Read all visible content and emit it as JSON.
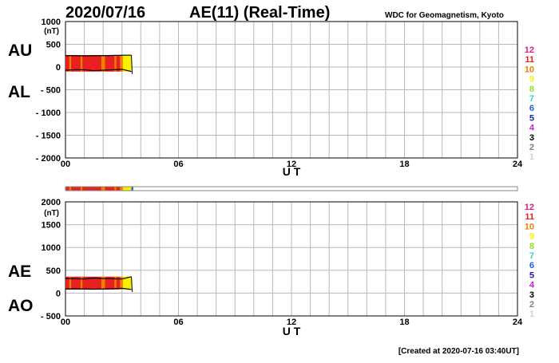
{
  "header": {
    "date": "2020/07/16",
    "title": "AE(11) (Real-Time)",
    "source": "WDC for Geomagnetism, Kyoto"
  },
  "footer": {
    "created": "[Created at 2020-07-16 03:40UT]"
  },
  "top_panel": {
    "upper_label": "AU",
    "lower_label": "AL",
    "ylabel_unit": "(nT)",
    "xlabel": "U T"
  },
  "bottom_panel": {
    "upper_label": "AE",
    "lower_label": "AO",
    "ylabel_unit": "(nT)",
    "xlabel": "U T"
  },
  "legend": {
    "levels": [
      {
        "label": "12",
        "color": "#e0207a"
      },
      {
        "label": "11",
        "color": "#e82020"
      },
      {
        "label": "10",
        "color": "#f08000"
      },
      {
        "label": "9",
        "color": "#f8f000"
      },
      {
        "label": "8",
        "color": "#90e020"
      },
      {
        "label": "7",
        "color": "#30d0d0"
      },
      {
        "label": "6",
        "color": "#2060e0"
      },
      {
        "label": "5",
        "color": "#2020a0"
      },
      {
        "label": "4",
        "color": "#c020e0"
      },
      {
        "label": "3",
        "color": "#000000"
      },
      {
        "label": "2",
        "color": "#808080"
      },
      {
        "label": "1",
        "color": "#d0d0d0"
      }
    ]
  },
  "chart_data": [
    {
      "type": "area",
      "title": "",
      "xlabel": "U T",
      "ylabel": "(nT)",
      "xlim": [
        0,
        24
      ],
      "ylim": [
        -2000,
        1000
      ],
      "x_ticks": [
        {
          "value": 0,
          "label": "00"
        },
        {
          "value": 6,
          "label": "06"
        },
        {
          "value": 12,
          "label": "12"
        },
        {
          "value": 18,
          "label": "18"
        },
        {
          "value": 24,
          "label": "24"
        }
      ],
      "y_ticks": [
        {
          "value": 1000,
          "label": "1000"
        },
        {
          "value": 500,
          "label": "500"
        },
        {
          "value": 0,
          "label": "0"
        },
        {
          "value": -500,
          "label": "- 500"
        },
        {
          "value": -1000,
          "label": "- 1000"
        },
        {
          "value": -1500,
          "label": "- 1500"
        },
        {
          "value": -2000,
          "label": "- 2000"
        }
      ],
      "grid": true,
      "series": [
        {
          "name": "AU",
          "x": [
            0,
            0.5,
            1.0,
            1.5,
            2.0,
            2.5,
            3.0,
            3.5
          ],
          "values": [
            250,
            250,
            245,
            250,
            250,
            255,
            260,
            260
          ]
        },
        {
          "name": "AL",
          "x": [
            0,
            0.5,
            1.0,
            1.5,
            2.0,
            2.5,
            3.0,
            3.5
          ],
          "values": [
            -70,
            -60,
            -60,
            -80,
            -70,
            -60,
            -50,
            -100
          ]
        }
      ],
      "color_strip": [
        {
          "from": 0.0,
          "to": 2.9,
          "level": 11
        },
        {
          "from": 0.2,
          "to": 0.3,
          "level": 10
        },
        {
          "from": 0.8,
          "to": 0.9,
          "level": 10
        },
        {
          "from": 1.9,
          "to": 2.1,
          "level": 10
        },
        {
          "from": 2.6,
          "to": 2.7,
          "level": 10
        },
        {
          "from": 2.9,
          "to": 3.05,
          "level": 10
        },
        {
          "from": 3.05,
          "to": 3.5,
          "level": 9
        }
      ]
    },
    {
      "type": "area",
      "title": "",
      "xlabel": "U T",
      "ylabel": "(nT)",
      "xlim": [
        0,
        24
      ],
      "ylim": [
        -500,
        2000
      ],
      "x_ticks": [
        {
          "value": 0,
          "label": "00"
        },
        {
          "value": 6,
          "label": "06"
        },
        {
          "value": 12,
          "label": "12"
        },
        {
          "value": 18,
          "label": "18"
        },
        {
          "value": 24,
          "label": "24"
        }
      ],
      "y_ticks": [
        {
          "value": 2000,
          "label": "2000"
        },
        {
          "value": 1500,
          "label": "1500"
        },
        {
          "value": 1000,
          "label": "1000"
        },
        {
          "value": 500,
          "label": "500"
        },
        {
          "value": 0,
          "label": "0"
        },
        {
          "value": -500,
          "label": "- 500"
        }
      ],
      "grid": true,
      "series": [
        {
          "name": "AE",
          "x": [
            0,
            0.5,
            1.0,
            1.5,
            2.0,
            2.5,
            3.0,
            3.5
          ],
          "values": [
            320,
            315,
            310,
            330,
            320,
            315,
            310,
            360
          ]
        },
        {
          "name": "AO",
          "x": [
            0,
            0.5,
            1.0,
            1.5,
            2.0,
            2.5,
            3.0,
            3.5
          ],
          "values": [
            90,
            95,
            90,
            85,
            90,
            95,
            105,
            80
          ]
        }
      ],
      "color_strip": [
        {
          "from": 0.0,
          "to": 2.9,
          "level": 11
        },
        {
          "from": 0.2,
          "to": 0.3,
          "level": 10
        },
        {
          "from": 0.8,
          "to": 0.9,
          "level": 10
        },
        {
          "from": 1.9,
          "to": 2.1,
          "level": 10
        },
        {
          "from": 2.6,
          "to": 2.7,
          "level": 10
        },
        {
          "from": 2.9,
          "to": 3.05,
          "level": 10
        },
        {
          "from": 3.05,
          "to": 3.5,
          "level": 9
        }
      ]
    }
  ],
  "status_bar": {
    "xlim": [
      0,
      24
    ],
    "segments": [
      {
        "from": 0.0,
        "to": 2.9,
        "level": 11
      },
      {
        "from": 0.2,
        "to": 0.3,
        "level": 10
      },
      {
        "from": 0.8,
        "to": 0.9,
        "level": 10
      },
      {
        "from": 1.9,
        "to": 2.1,
        "level": 10
      },
      {
        "from": 2.6,
        "to": 2.7,
        "level": 10
      },
      {
        "from": 2.9,
        "to": 3.05,
        "level": 10
      },
      {
        "from": 3.05,
        "to": 3.5,
        "level": 9
      },
      {
        "from": 3.5,
        "to": 3.6,
        "level": 6
      }
    ]
  }
}
